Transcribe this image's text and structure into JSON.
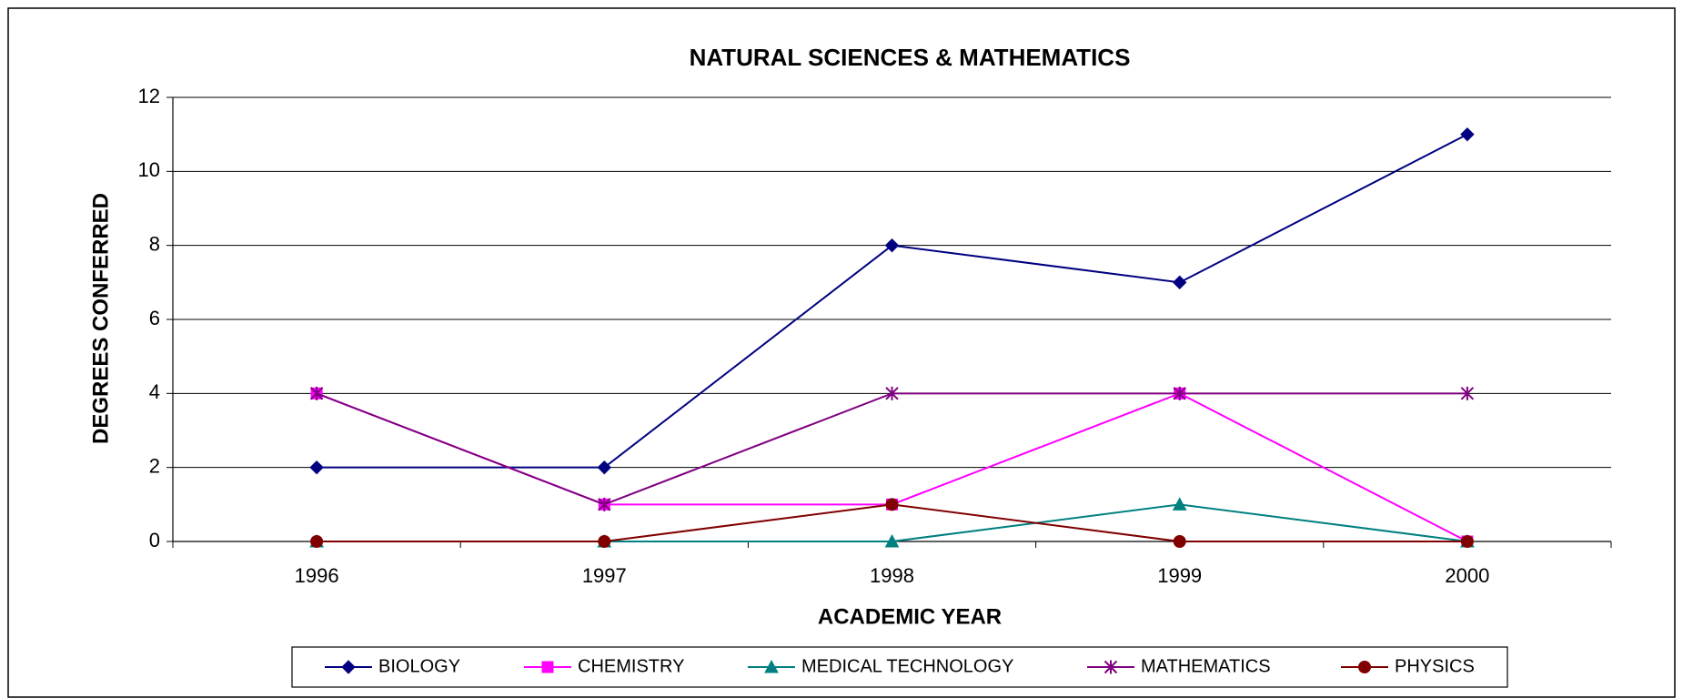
{
  "chart_data": {
    "type": "line",
    "title": "NATURAL SCIENCES & MATHEMATICS",
    "x_label": "ACADEMIC YEAR",
    "y_label": "DEGREES CONFERRED",
    "categories": [
      "1996",
      "1997",
      "1998",
      "1999",
      "2000"
    ],
    "series": [
      {
        "name": "BIOLOGY",
        "color": "#000080",
        "marker": "diamond",
        "values": [
          2,
          2,
          8,
          7,
          11
        ]
      },
      {
        "name": "CHEMISTRY",
        "color": "#ff00ff",
        "marker": "square",
        "values": [
          4,
          1,
          1,
          4,
          0
        ]
      },
      {
        "name": "MEDICAL TECHNOLOGY",
        "color": "#008080",
        "marker": "triangle",
        "values": [
          0,
          0,
          0,
          1,
          0
        ]
      },
      {
        "name": "MATHEMATICS",
        "color": "#800080",
        "marker": "star",
        "values": [
          4,
          1,
          4,
          4,
          4
        ]
      },
      {
        "name": "PHYSICS",
        "color": "#800000",
        "marker": "circle",
        "values": [
          0,
          0,
          1,
          0,
          0
        ]
      }
    ],
    "ylim": [
      0,
      12
    ],
    "yticks": [
      0,
      2,
      4,
      6,
      8,
      10,
      12
    ],
    "grid": true,
    "legend": "bottom"
  }
}
